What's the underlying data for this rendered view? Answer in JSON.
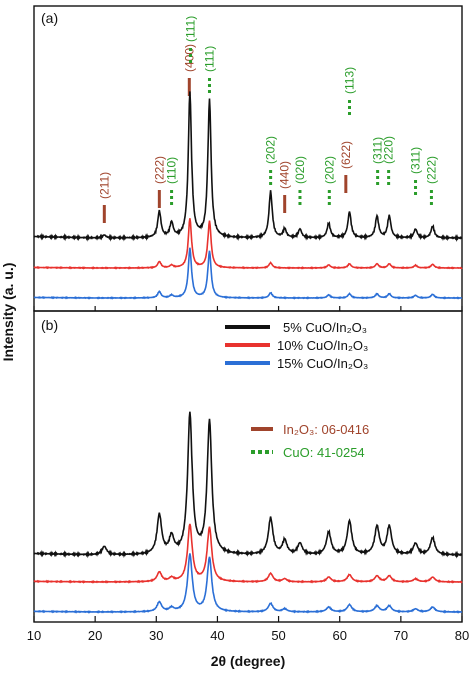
{
  "chart_data": [
    {
      "panel": "(a)",
      "type": "line",
      "xlabel": "2θ (degree)",
      "ylabel": "Intensity (a. u.)",
      "xlim": [
        10,
        80
      ],
      "xticks": [
        10,
        20,
        30,
        40,
        50,
        60,
        70,
        80
      ],
      "series": [
        {
          "name": "5% CuO/In2O3",
          "color": "#111111",
          "offset": 2.0,
          "peaks": [
            [
              21.5,
              0.02
            ],
            [
              30.5,
              0.18
            ],
            [
              32.5,
              0.1
            ],
            [
              35.5,
              1.0
            ],
            [
              38.7,
              0.95
            ],
            [
              48.7,
              0.32
            ],
            [
              51.0,
              0.06
            ],
            [
              53.5,
              0.06
            ],
            [
              58.2,
              0.1
            ],
            [
              61.6,
              0.18
            ],
            [
              66.1,
              0.15
            ],
            [
              68.1,
              0.15
            ],
            [
              72.4,
              0.06
            ],
            [
              75.2,
              0.08
            ]
          ]
        },
        {
          "name": "10% CuO/In2O3",
          "color": "#e8322e",
          "offset": 1.0,
          "peaks": [
            [
              30.5,
              0.12
            ],
            [
              32.5,
              0.05
            ],
            [
              35.5,
              0.95
            ],
            [
              38.7,
              0.9
            ],
            [
              48.7,
              0.1
            ],
            [
              58.2,
              0.06
            ],
            [
              61.6,
              0.08
            ],
            [
              66.1,
              0.08
            ],
            [
              68.1,
              0.08
            ],
            [
              72.4,
              0.05
            ],
            [
              75.2,
              0.07
            ]
          ]
        },
        {
          "name": "15% CuO/In2O3",
          "color": "#2b6fd6",
          "offset": 0.0,
          "peaks": [
            [
              30.5,
              0.12
            ],
            [
              32.5,
              0.05
            ],
            [
              35.5,
              0.95
            ],
            [
              38.7,
              0.9
            ],
            [
              48.7,
              0.1
            ],
            [
              58.2,
              0.06
            ],
            [
              61.6,
              0.08
            ],
            [
              66.1,
              0.08
            ],
            [
              68.1,
              0.08
            ],
            [
              72.4,
              0.05
            ],
            [
              75.2,
              0.07
            ]
          ]
        }
      ],
      "reference_marks": [
        {
          "phase": "In2O3",
          "color": "#a0442c",
          "style": "solid",
          "x": 21.5,
          "label": "(211)"
        },
        {
          "phase": "In2O3",
          "color": "#a0442c",
          "style": "solid",
          "x": 30.5,
          "label": "(222)"
        },
        {
          "phase": "CuO",
          "color": "#2a9d2a",
          "style": "dotted",
          "x": 32.5,
          "label": "(110)"
        },
        {
          "phase": "In2O3",
          "color": "#a0442c",
          "style": "solid",
          "x": 35.4,
          "label": "(400)"
        },
        {
          "phase": "CuO",
          "color": "#2a9d2a",
          "style": "dotted",
          "x": 35.6,
          "label": "(111)"
        },
        {
          "phase": "CuO",
          "color": "#2a9d2a",
          "style": "dotted",
          "x": 38.7,
          "label": "(111)"
        },
        {
          "phase": "CuO",
          "color": "#2a9d2a",
          "style": "dotted",
          "x": 48.7,
          "label": "(202)"
        },
        {
          "phase": "In2O3",
          "color": "#a0442c",
          "style": "solid",
          "x": 51.0,
          "label": "(440)"
        },
        {
          "phase": "CuO",
          "color": "#2a9d2a",
          "style": "dotted",
          "x": 53.5,
          "label": "(020)"
        },
        {
          "phase": "CuO",
          "color": "#2a9d2a",
          "style": "dotted",
          "x": 58.3,
          "label": "(202)"
        },
        {
          "phase": "In2O3",
          "color": "#a0442c",
          "style": "solid",
          "x": 61.0,
          "label": "(622)"
        },
        {
          "phase": "CuO",
          "color": "#2a9d2a",
          "style": "dotted",
          "x": 61.6,
          "label": "(113)"
        },
        {
          "phase": "CuO",
          "color": "#2a9d2a",
          "style": "dotted",
          "x": 66.2,
          "label": "(311)"
        },
        {
          "phase": "CuO",
          "color": "#2a9d2a",
          "style": "dotted",
          "x": 68.0,
          "label": "(220)"
        },
        {
          "phase": "CuO",
          "color": "#2a9d2a",
          "style": "dotted",
          "x": 72.4,
          "label": "(311)"
        },
        {
          "phase": "CuO",
          "color": "#2a9d2a",
          "style": "dotted",
          "x": 75.0,
          "label": "(222)"
        }
      ]
    },
    {
      "panel": "(b)",
      "type": "line",
      "xlabel": "2θ (degree)",
      "ylabel": "Intensity (a. u.)",
      "xlim": [
        10,
        80
      ],
      "xticks": [
        10,
        20,
        30,
        40,
        50,
        60,
        70,
        80
      ],
      "series": [
        {
          "name": "5% CuO/In2O3",
          "color": "#111111",
          "offset": 2.0,
          "peaks": [
            [
              21.5,
              0.06
            ],
            [
              30.5,
              0.28
            ],
            [
              32.5,
              0.12
            ],
            [
              35.5,
              1.0
            ],
            [
              38.7,
              0.95
            ],
            [
              48.7,
              0.26
            ],
            [
              51.0,
              0.1
            ],
            [
              53.5,
              0.08
            ],
            [
              58.2,
              0.16
            ],
            [
              61.6,
              0.24
            ],
            [
              66.1,
              0.2
            ],
            [
              68.1,
              0.2
            ],
            [
              72.4,
              0.08
            ],
            [
              75.2,
              0.12
            ]
          ]
        },
        {
          "name": "10% CuO/In2O3",
          "color": "#e8322e",
          "offset": 1.0,
          "peaks": [
            [
              30.5,
              0.16
            ],
            [
              32.5,
              0.06
            ],
            [
              35.5,
              0.95
            ],
            [
              38.7,
              0.9
            ],
            [
              48.7,
              0.14
            ],
            [
              51.0,
              0.05
            ],
            [
              58.2,
              0.08
            ],
            [
              61.6,
              0.12
            ],
            [
              66.1,
              0.1
            ],
            [
              68.1,
              0.1
            ],
            [
              72.4,
              0.05
            ],
            [
              75.2,
              0.08
            ]
          ]
        },
        {
          "name": "15% CuO/In2O3",
          "color": "#2b6fd6",
          "offset": 0.0,
          "peaks": [
            [
              30.5,
              0.16
            ],
            [
              32.5,
              0.06
            ],
            [
              35.5,
              0.95
            ],
            [
              38.7,
              0.9
            ],
            [
              48.7,
              0.14
            ],
            [
              51.0,
              0.05
            ],
            [
              58.2,
              0.08
            ],
            [
              61.6,
              0.12
            ],
            [
              66.1,
              0.1
            ],
            [
              68.1,
              0.1
            ],
            [
              72.4,
              0.05
            ],
            [
              75.2,
              0.08
            ]
          ]
        }
      ]
    }
  ],
  "legend": {
    "placement": "upper-right of panel (b)",
    "items": [
      {
        "text": "5% CuO/In₂O₃",
        "color": "#111111"
      },
      {
        "text": "10% CuO/In₂O₃",
        "color": "#e8322e"
      },
      {
        "text": "15% CuO/In₂O₃",
        "color": "#2b6fd6"
      }
    ],
    "references": [
      {
        "text": "In₂O₃: 06-0416",
        "color": "#a0442c",
        "style": "solid"
      },
      {
        "text": "CuO: 41-0254",
        "color": "#2a9d2a",
        "style": "dotted"
      }
    ]
  },
  "labels": {
    "panel_a": "(a)",
    "panel_b": "(b)",
    "x_axis_title": "2θ (degree)",
    "y_axis_title": "Intensity (a. u.)"
  }
}
